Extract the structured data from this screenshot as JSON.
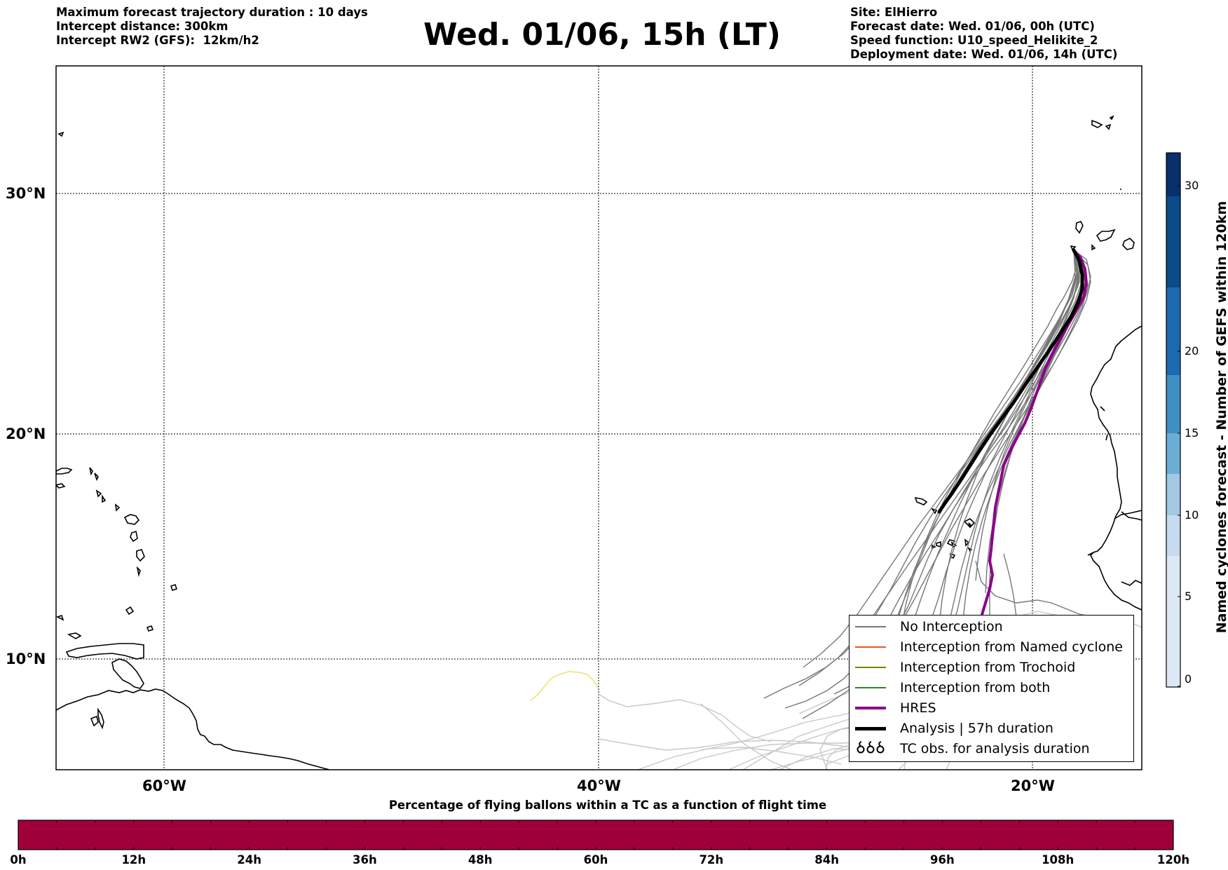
{
  "header": {
    "left_lines": [
      "Maximum forecast trajectory duration : 10 days",
      "Intercept distance: 300km",
      "Intercept RW2 (GFS):  12km/h2"
    ],
    "title": "Wed. 01/06, 15h (LT)",
    "right_lines": [
      "Site: ElHierro",
      "Forecast date: Wed. 01/06, 00h (UTC)",
      "Speed function: U10_speed_Helikite_2",
      "Deployment date: Wed. 01/06, 14h (UTC)"
    ]
  },
  "map": {
    "lat_labels": [
      "30°N",
      "20°N",
      "10°N"
    ],
    "lon_labels": [
      "60°W",
      "40°W",
      "20°W"
    ],
    "colors": {
      "no_interception": "#777777",
      "named_cyclone": "#e8581a",
      "trochoid": "#808000",
      "both": "#228b22",
      "hres": "#8b008b",
      "analysis": "#000000",
      "faded": "#c8c8c8",
      "yellow_track": "#e8e060"
    }
  },
  "legend": {
    "items": [
      {
        "label": "No Interception",
        "style": "thin",
        "color": "#777777"
      },
      {
        "label": "Interception from Named cyclone",
        "style": "thin",
        "color": "#e8581a"
      },
      {
        "label": "Interception from Trochoid",
        "style": "thin",
        "color": "#808000"
      },
      {
        "label": "Interception from both",
        "style": "thin",
        "color": "#228b22"
      },
      {
        "label": "HRES",
        "style": "thick",
        "color": "#8b008b"
      },
      {
        "label": "Analysis | 57h duration",
        "style": "thick",
        "color": "#000000"
      },
      {
        "label": "TC obs. for analysis duration",
        "style": "symbol",
        "color": "#000000"
      }
    ],
    "symbol_glyph": "➰➰➰"
  },
  "vertical_colorbar": {
    "label": "Named cyclones forecast - Number of GEFS within 120km",
    "ticks": [
      "0",
      "5",
      "10",
      "15",
      "20",
      "30"
    ],
    "colors": [
      "#dde8f6",
      "#c6dbef",
      "#a2c8e4",
      "#6aaed6",
      "#3f8fc5",
      "#1c6ab0",
      "#0a4b8c",
      "#08306b"
    ]
  },
  "horizontal_colorbar": {
    "title": "Percentage of flying ballons within a TC as a function of flight time",
    "fill_color": "#a0003a",
    "ticks": [
      "0h",
      "12h",
      "24h",
      "36h",
      "48h",
      "60h",
      "72h",
      "84h",
      "96h",
      "108h",
      "120h"
    ]
  }
}
